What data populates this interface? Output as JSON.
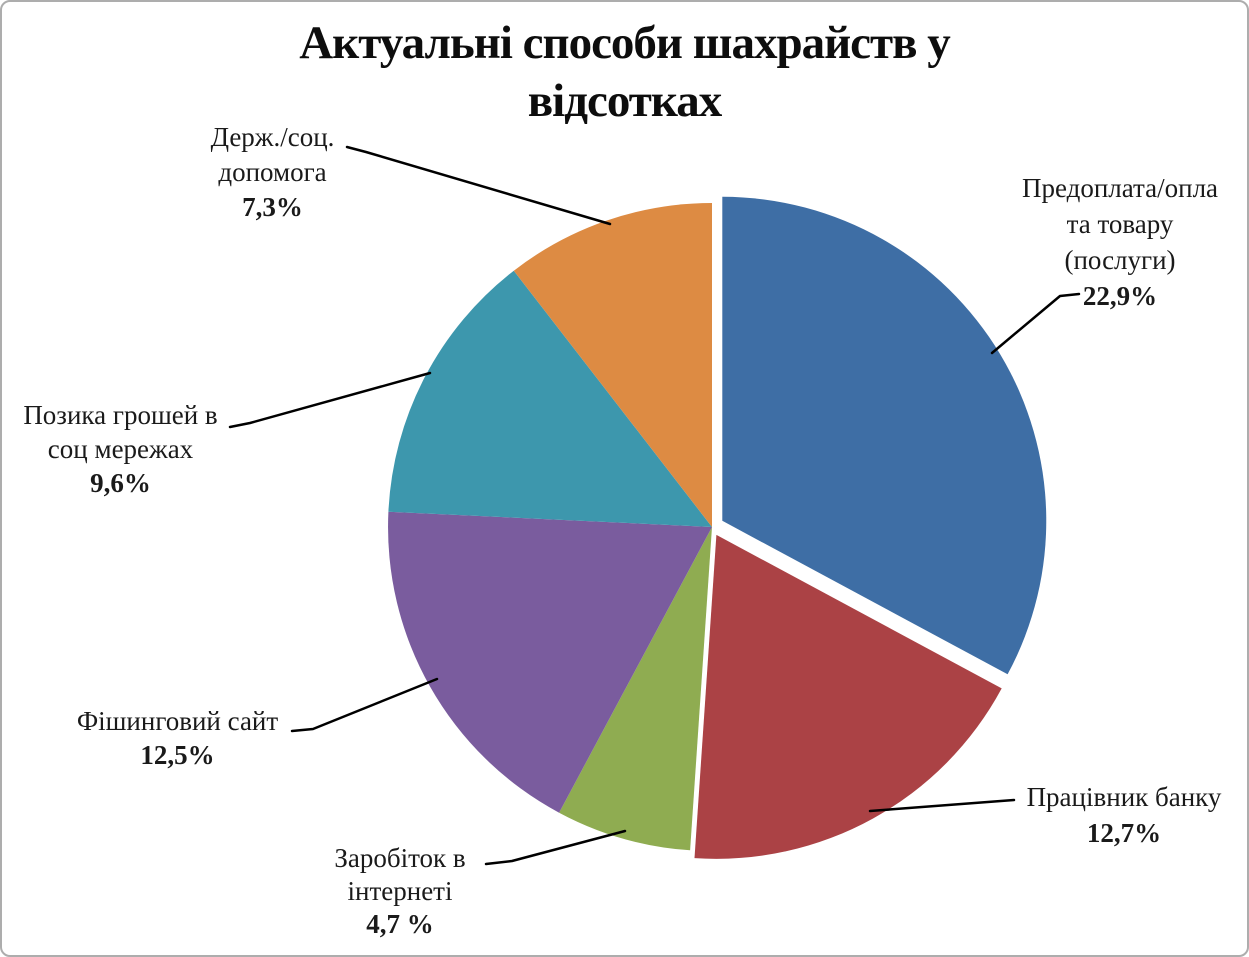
{
  "chart_data": {
    "type": "pie",
    "title": "Актуальні способи шахрайств у відсотках",
    "title_lines": [
      "Актуальні способи шахрайств у",
      "відсотках"
    ],
    "unit": "percent",
    "start_angle_deg": 0,
    "direction": "clockwise",
    "legend": "none (labels with leader lines around pie)",
    "slices": [
      {
        "label": "Предоплата/оплата товару (послуги)",
        "label_lines": [
          "Предоплата/опла",
          "та товару",
          "(послуги)"
        ],
        "value": 22.9,
        "value_text": "22,9%",
        "color": "#3E6EA5",
        "exploded": true
      },
      {
        "label": "Працівник банку",
        "label_lines": [
          "Працівник банку"
        ],
        "value": 12.7,
        "value_text": "12,7%",
        "color": "#AB4245",
        "exploded": true
      },
      {
        "label": "Заробіток в інтернеті",
        "label_lines": [
          "Заробіток в",
          "інтернеті"
        ],
        "value": 4.7,
        "value_text": "4,7 %",
        "color": "#8FAC51",
        "exploded": false
      },
      {
        "label": "Фішинговий сайт",
        "label_lines": [
          "Фішинговий сайт"
        ],
        "value": 12.5,
        "value_text": "12,5%",
        "color": "#7A5C9E",
        "exploded": false
      },
      {
        "label": "Позика грошей в соц мережах",
        "label_lines": [
          "Позика грошей в",
          "соц мережах"
        ],
        "value": 9.6,
        "value_text": "9,6%",
        "color": "#3D97AD",
        "exploded": false
      },
      {
        "label": "Держ./соц. допомога",
        "label_lines": [
          "Держ./соц.",
          "допомога"
        ],
        "value": 7.3,
        "value_text": "7,3%",
        "color": "#DD8B43",
        "exploded": false
      }
    ],
    "leader_line_color": "#000000",
    "background_color": "#ffffff",
    "border_color": "#adadad"
  }
}
